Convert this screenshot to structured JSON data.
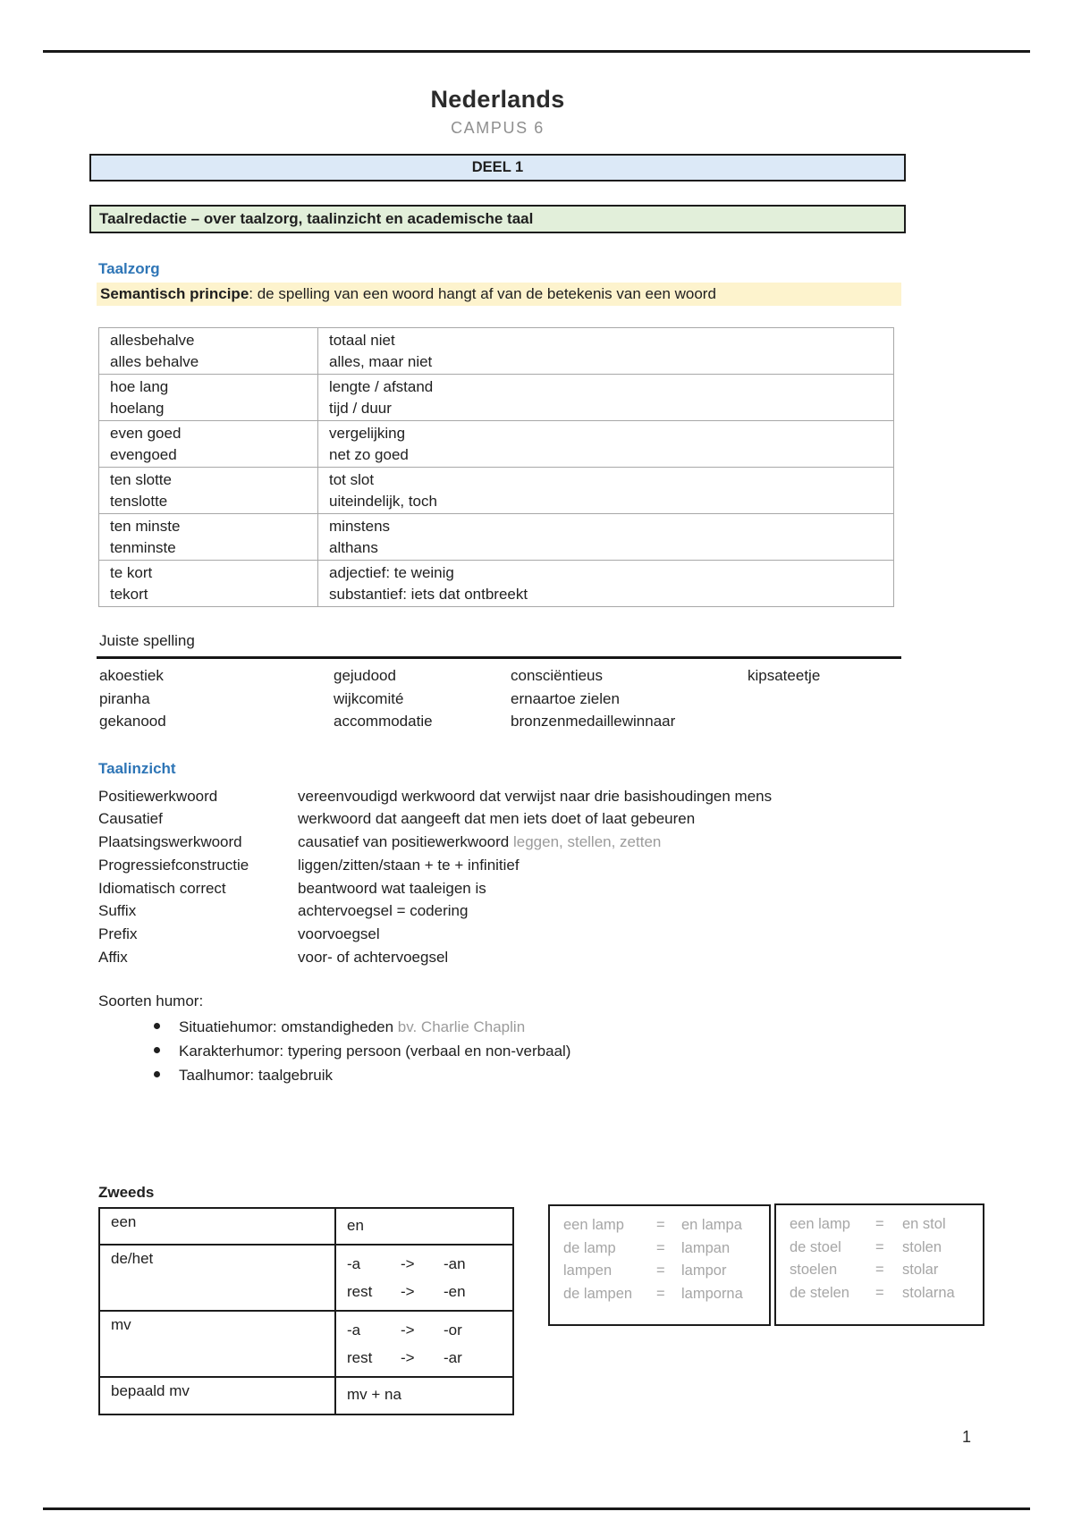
{
  "colors": {
    "accent_blue": "#2e75b6",
    "banner_blue_fill": "#dce9f7",
    "banner_green_fill": "#e2efda",
    "highlight_yellow": "#fdf3cd",
    "muted_gray": "#9b9b9b"
  },
  "page": {
    "title": "Nederlands",
    "subtitle": "CAMPUS 6",
    "deel_banner": "DEEL 1",
    "section_banner": "Taalredactie – over taalzorg, taalinzicht en academische taal",
    "page_number": "1"
  },
  "taalzorg": {
    "heading": "Taalzorg",
    "principle_bold": "Semantisch principe",
    "principle_rest": ": de spelling van een woord hangt af van de betekenis van een woord",
    "table_rows": [
      {
        "left": [
          "allesbehalve",
          "alles behalve"
        ],
        "right": [
          "totaal niet",
          "alles, maar niet"
        ]
      },
      {
        "left": [
          "hoe lang",
          "hoelang"
        ],
        "right": [
          "lengte / afstand",
          "tijd / duur"
        ]
      },
      {
        "left": [
          "even goed",
          "evengoed"
        ],
        "right": [
          "vergelijking",
          "net zo goed"
        ]
      },
      {
        "left": [
          "ten slotte",
          "tenslotte"
        ],
        "right": [
          "tot slot",
          "uiteindelijk, toch"
        ]
      },
      {
        "left": [
          "ten minste",
          "tenminste"
        ],
        "right": [
          "minstens",
          "althans"
        ]
      },
      {
        "left": [
          "te kort",
          "tekort"
        ],
        "right": [
          "adjectief: te weinig",
          "substantief: iets dat ontbreekt"
        ]
      }
    ]
  },
  "juiste_spelling": {
    "heading": "Juiste spelling",
    "rows": [
      [
        "akoestiek",
        "gejudood",
        "consciëntieus",
        "kipsateetje"
      ],
      [
        "piranha",
        "wijkcomité",
        "ernaartoe zielen",
        ""
      ],
      [
        "gekanood",
        "accommodatie",
        "bronzenmedaillewinnaar",
        ""
      ]
    ]
  },
  "taalinzicht": {
    "heading": "Taalinzicht",
    "entries": [
      {
        "term": "Positiewerkwoord",
        "definition": "vereenvoudigd werkwoord dat verwijst naar drie basishoudingen mens",
        "note": ""
      },
      {
        "term": "Causatief",
        "definition": "werkwoord dat aangeeft dat men iets doet of laat gebeuren",
        "note": ""
      },
      {
        "term": "Plaatsingswerkwoord",
        "definition": "causatief van positiewerkwoord",
        "note": "leggen, stellen, zetten"
      },
      {
        "term": "Progressiefconstructie",
        "definition": "liggen/zitten/staan + te + infinitief",
        "note": ""
      },
      {
        "term": "Idiomatisch correct",
        "definition": "beantwoord wat taaleigen is",
        "note": ""
      },
      {
        "term": "Suffix",
        "definition": "achtervoegsel = codering",
        "note": ""
      },
      {
        "term": "Prefix",
        "definition": "voorvoegsel",
        "note": ""
      },
      {
        "term": "Affix",
        "definition": "voor- of achtervoegsel",
        "note": ""
      }
    ]
  },
  "humor": {
    "heading": "Soorten humor:",
    "items": [
      {
        "text": "Situatiehumor: omstandigheden",
        "note": "bv. Charlie Chaplin"
      },
      {
        "text": "Karakterhumor: typering persoon (verbaal en non-verbaal)",
        "note": ""
      },
      {
        "text": "Taalhumor: taalgebruik",
        "note": ""
      }
    ]
  },
  "zweeds": {
    "heading": "Zweeds",
    "table_rows": [
      {
        "left": "een",
        "right": [
          [
            "en",
            "",
            ""
          ]
        ]
      },
      {
        "left": "de/het",
        "right": [
          [
            "-a",
            "->",
            "-an"
          ],
          [
            "rest",
            "->",
            "-en"
          ]
        ]
      },
      {
        "left": "mv",
        "right": [
          [
            "-a",
            "->",
            "-or"
          ],
          [
            "rest",
            "->",
            "-ar"
          ]
        ]
      },
      {
        "left": "bepaald mv",
        "right": [
          [
            "mv + na",
            "",
            ""
          ]
        ]
      }
    ],
    "example_boxes": [
      {
        "rows": [
          [
            "een lamp",
            "=",
            "en lampa"
          ],
          [
            "de lamp",
            "=",
            "lampan"
          ],
          [
            "lampen",
            "=",
            "lampor"
          ],
          [
            "de lampen",
            "=",
            "lamporna"
          ]
        ]
      },
      {
        "rows": [
          [
            "een lamp",
            "=",
            "en stol"
          ],
          [
            "de stoel",
            "=",
            "stolen"
          ],
          [
            "stoelen",
            "=",
            "stolar"
          ],
          [
            "de stelen",
            "=",
            "stolarna"
          ]
        ]
      }
    ]
  }
}
